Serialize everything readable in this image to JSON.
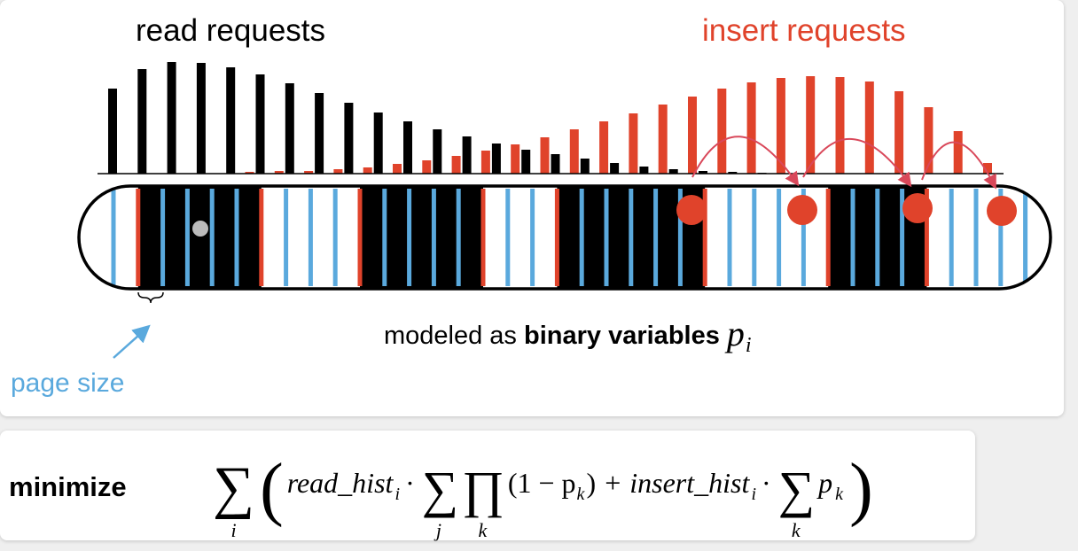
{
  "labels": {
    "read_requests": "read requests",
    "insert_requests": "insert requests",
    "modeled_prefix": "modeled as ",
    "modeled_bold": "binary variables",
    "variable": "p",
    "variable_sub": "i",
    "page_size": "page size"
  },
  "formula": {
    "minimize": "minimize",
    "sum": "∑",
    "prod": "∏",
    "idx_i": "i",
    "idx_j": "j",
    "idx_k": "k",
    "open_paren": "(",
    "close_paren": ")",
    "read_hist": "read_hist",
    "insert_hist": "insert_hist",
    "dot": "·",
    "one_minus": "(1 − p",
    "close_small": ")",
    "plus": "+",
    "p": "p"
  },
  "colors": {
    "read": "#000000",
    "insert": "#e0432b",
    "page_boundary": "#e0432b",
    "page_line": "#5aa9dd",
    "arrow": "#d9485a",
    "page_size_text": "#5aa9dd",
    "marker": "#bbbbbb"
  },
  "histogram": {
    "read": [
      96,
      118,
      126,
      125,
      120,
      112,
      102,
      91,
      80,
      69,
      59,
      50,
      42,
      34,
      27,
      22,
      17,
      12,
      8,
      5,
      3,
      2,
      1,
      0,
      0,
      0,
      0,
      0,
      0,
      0,
      0
    ],
    "insert": [
      0,
      0,
      0,
      0,
      0,
      2,
      3,
      3,
      5,
      7,
      11,
      15,
      20,
      26,
      33,
      41,
      50,
      59,
      68,
      78,
      87,
      96,
      103,
      108,
      110,
      109,
      104,
      93,
      75,
      48,
      12
    ]
  },
  "pages": {
    "boundaries": [
      1,
      6,
      10,
      15,
      18,
      24,
      29,
      33
    ],
    "slot_count": 38,
    "filled_ranges": [
      [
        1,
        6
      ],
      [
        10,
        15
      ],
      [
        18,
        24
      ],
      [
        29,
        33
      ]
    ],
    "insert_markers": [
      0,
      0,
      0,
      0
    ]
  }
}
